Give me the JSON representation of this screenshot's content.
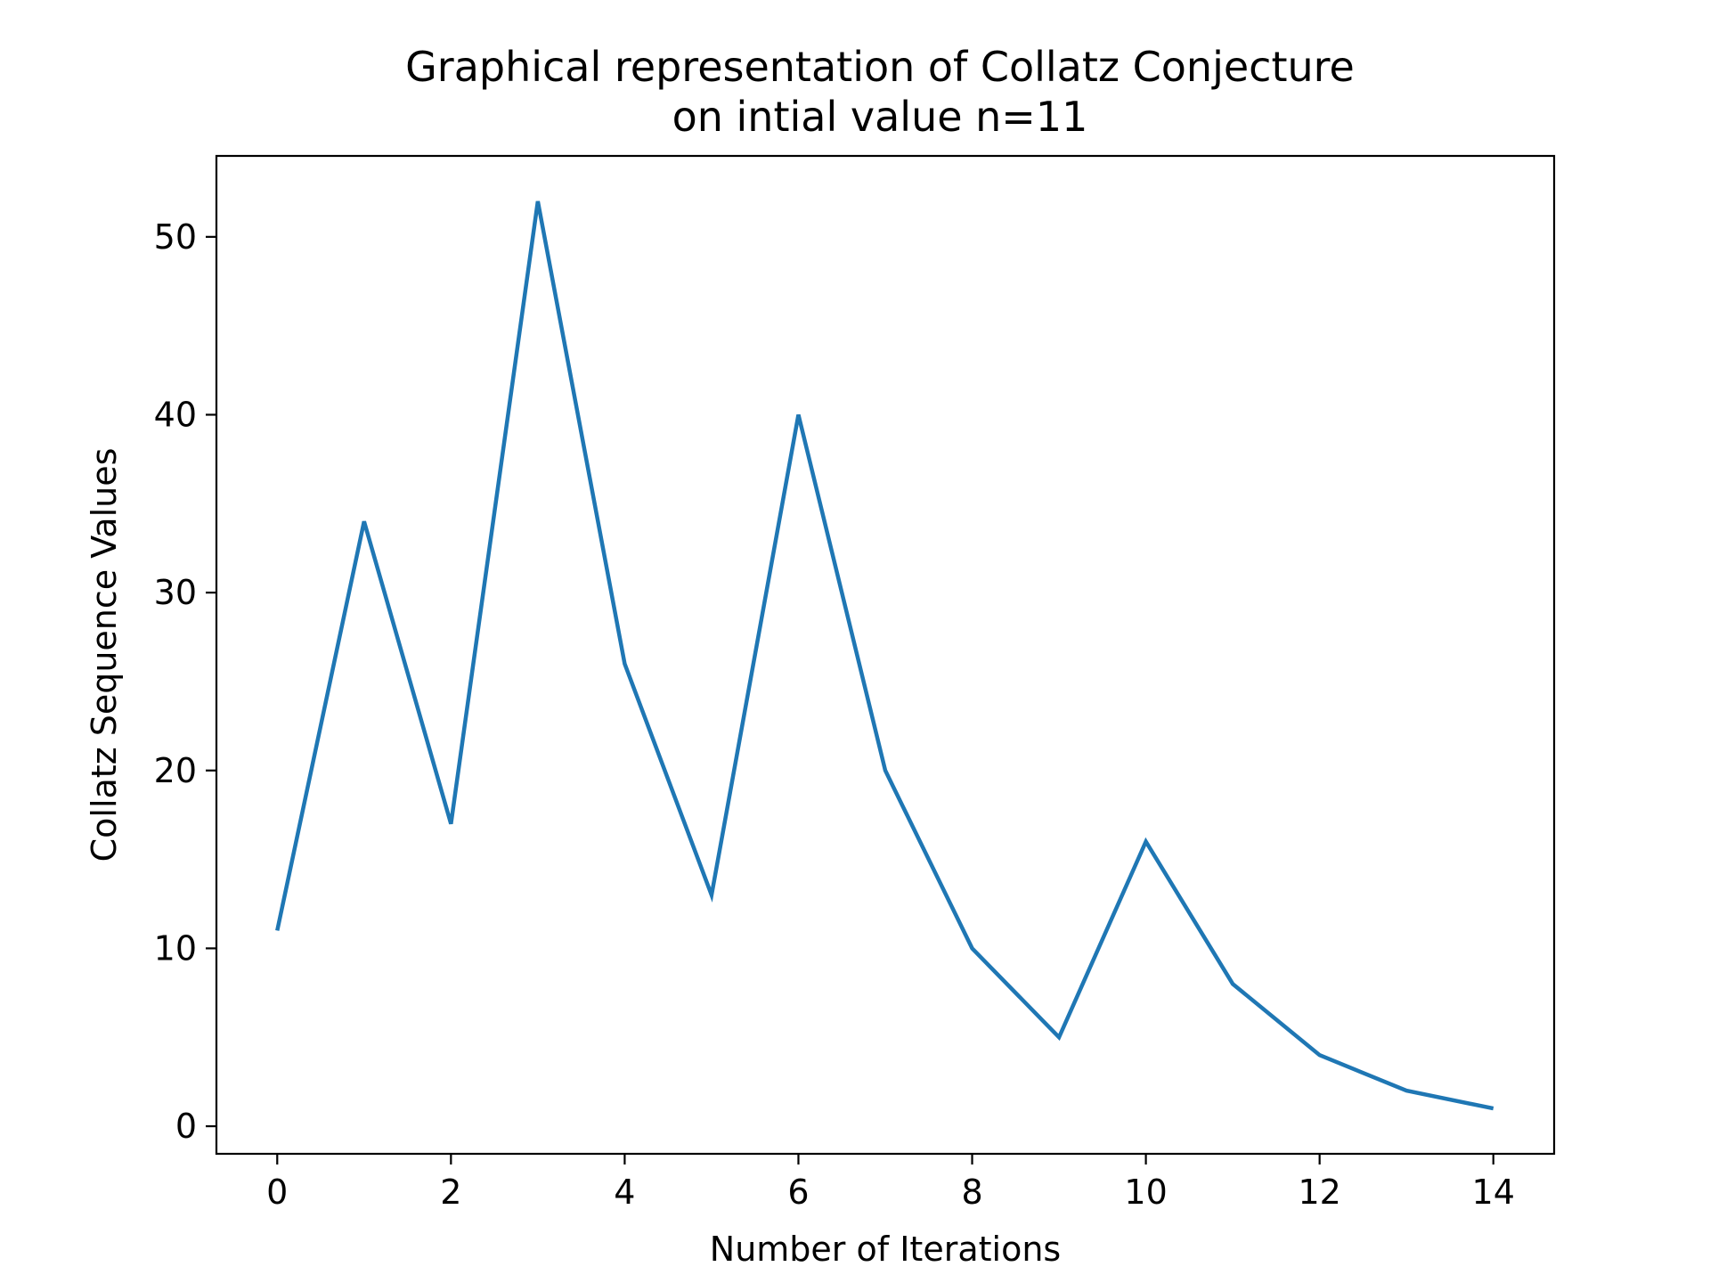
{
  "chart_data": {
    "type": "line",
    "title": "Graphical representation of Collatz Conjecture",
    "subtitle": "on intial value n=11",
    "xlabel": "Number of Iterations",
    "ylabel": "Collatz Sequence Values",
    "x": [
      0,
      1,
      2,
      3,
      4,
      5,
      6,
      7,
      8,
      9,
      10,
      11,
      12,
      13,
      14
    ],
    "series": [
      {
        "values": [
          11,
          34,
          17,
          52,
          26,
          13,
          40,
          20,
          10,
          5,
          16,
          8,
          4,
          2,
          1
        ],
        "color": "#1f77b4"
      }
    ],
    "xlim": [
      -0.7,
      14.7
    ],
    "ylim": [
      -1.55,
      54.55
    ],
    "xticks": [
      0,
      2,
      4,
      6,
      8,
      10,
      12,
      14
    ],
    "yticks": [
      0,
      10,
      20,
      30,
      40,
      50
    ],
    "grid": false,
    "legend": "none"
  }
}
